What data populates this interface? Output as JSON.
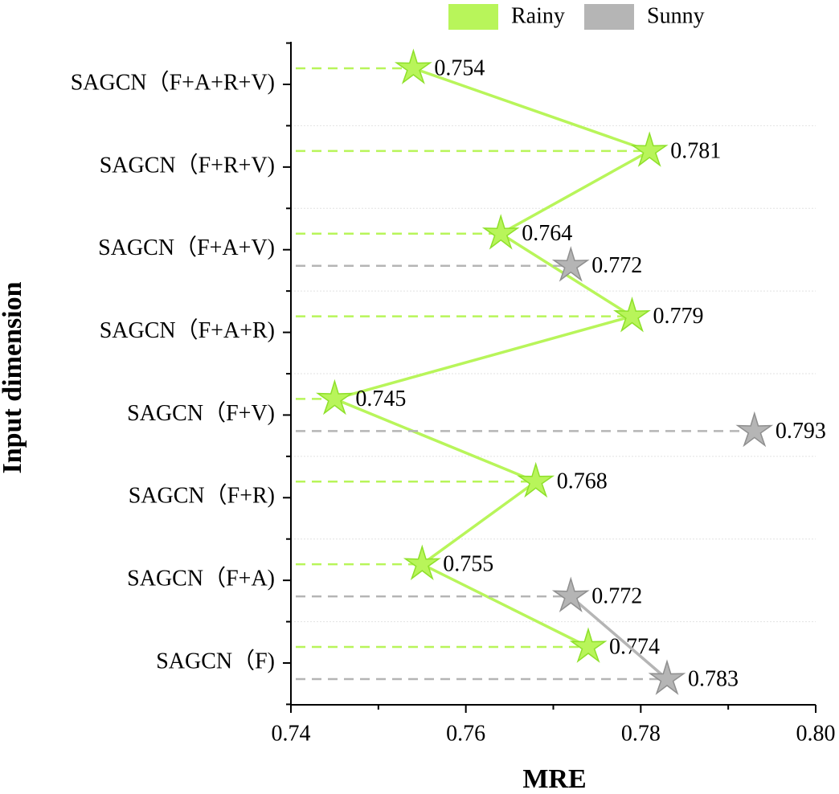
{
  "chart_data": {
    "type": "line",
    "x_label": "MRE",
    "y_label": "Input dimension",
    "categories": [
      "SAGCN（F+A+R+V)",
      "SAGCN（F+R+V)",
      "SAGCN（F+A+V)",
      "SAGCN（F+A+R)",
      "SAGCN（F+V)",
      "SAGCN（F+R)",
      "SAGCN（F+A)",
      "SAGCN（F)"
    ],
    "series": [
      {
        "name": "Rainy",
        "color": "#b8f55a",
        "values": [
          0.754,
          0.781,
          0.764,
          0.779,
          0.745,
          0.768,
          0.755,
          0.774
        ]
      },
      {
        "name": "Sunny",
        "color": "#b5b5b5",
        "values": [
          null,
          null,
          0.772,
          null,
          0.793,
          null,
          0.772,
          0.783
        ]
      }
    ],
    "xlim": [
      0.74,
      0.8
    ],
    "xticks": [
      0.74,
      0.76,
      0.78,
      {
        "value": 0.8,
        "label": "0.80"
      }
    ],
    "grid": true
  }
}
